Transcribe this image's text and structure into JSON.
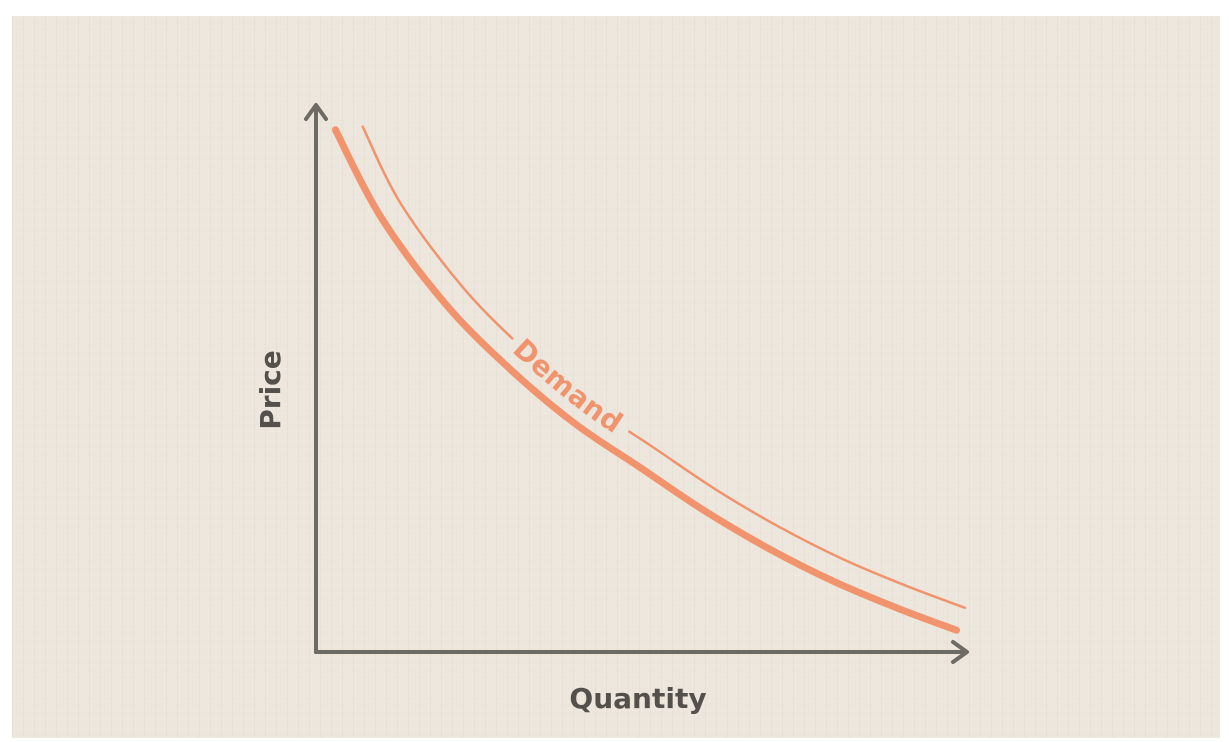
{
  "chart_data": {
    "type": "line",
    "title": "",
    "xlabel": "Quantity",
    "ylabel": "Price",
    "xlim": [
      0,
      100
    ],
    "ylim": [
      0,
      100
    ],
    "grid": false,
    "legend": "none",
    "series": [
      {
        "name": "Demand",
        "color": "#f1946d",
        "x": [
          3,
          10,
          20,
          30,
          40,
          50,
          60,
          70,
          80,
          90,
          99
        ],
        "y": [
          96,
          80,
          64,
          52,
          42,
          34,
          26,
          19,
          13,
          8,
          4
        ]
      }
    ],
    "annotations": [
      {
        "text": "Demand",
        "attached_to": "Demand",
        "style": "offset-parallel-line"
      }
    ],
    "colors": {
      "axis": "#6e6a64",
      "curve": "#f1946d",
      "background": "#ece6dc",
      "label_text": "#54504b"
    }
  }
}
